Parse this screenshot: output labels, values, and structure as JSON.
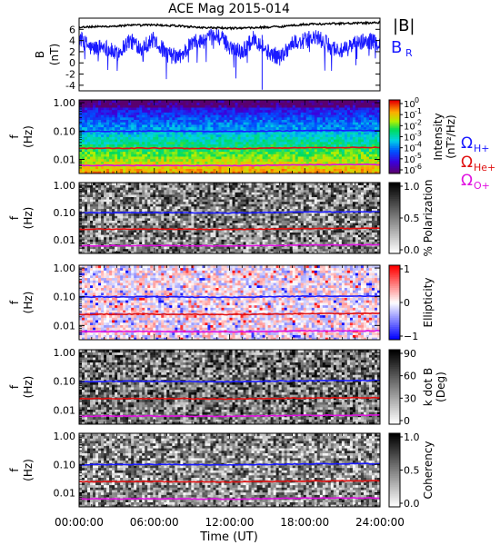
{
  "chart_data": [
    {
      "type": "line",
      "title": "ACE Mag 2015-014",
      "ylabel": "B",
      "yunit": "(nT)",
      "ylim": [
        -5,
        8
      ],
      "yticks": [
        -4,
        -2,
        0,
        2,
        4,
        6
      ],
      "xlim_hours": [
        0,
        24
      ],
      "legend": [
        {
          "label": "|B|",
          "color": "#000000"
        },
        {
          "label": "B",
          "sub": "R",
          "color": "#1a1aff"
        }
      ],
      "series": [
        {
          "name": "|B|",
          "color": "#000000",
          "x_hours": [
            0,
            2,
            4,
            6,
            8,
            10,
            12,
            14,
            16,
            18,
            20,
            22,
            24
          ],
          "values": [
            6.4,
            6.5,
            6.7,
            6.8,
            6.6,
            6.3,
            6.2,
            6.3,
            6.5,
            6.9,
            7.0,
            7.1,
            7.2
          ]
        },
        {
          "name": "B",
          "sub": "R",
          "color": "#1a1aff",
          "x_hours": [
            0,
            1,
            2,
            3,
            4,
            5,
            6,
            7,
            8,
            9,
            10,
            11,
            12,
            13,
            14,
            15,
            16,
            17,
            18,
            19,
            20,
            21,
            22,
            23,
            24
          ],
          "values": [
            4.5,
            2.5,
            3.0,
            1.5,
            4.0,
            2.8,
            4.2,
            1.5,
            1.0,
            3.5,
            4.0,
            5.0,
            3.0,
            2.0,
            4.5,
            2.0,
            1.0,
            3.5,
            4.0,
            4.5,
            3.0,
            2.0,
            3.5,
            4.0,
            3.5
          ],
          "min": -4.5
        }
      ]
    },
    {
      "type": "heatmap",
      "ylabel": "f",
      "yunit": "(Hz)",
      "yticks": [
        "0.01",
        "0.10",
        "1.00"
      ],
      "colorbar": {
        "title": "Intensity",
        "unit": "(nT²/Hz)",
        "scale": "log",
        "ticks": [
          {
            "base": "10",
            "exp": "0"
          },
          {
            "base": "10",
            "exp": "-1"
          },
          {
            "base": "10",
            "exp": "-2"
          },
          {
            "base": "10",
            "exp": "-3"
          },
          {
            "base": "10",
            "exp": "-4"
          },
          {
            "base": "10",
            "exp": "-5"
          },
          {
            "base": "10",
            "exp": "-6"
          }
        ],
        "palette": "rainbow"
      },
      "legend": [
        {
          "symbol": "Ω",
          "sub": "H+",
          "color": "#1a1aff"
        },
        {
          "symbol": "Ω",
          "sub": "He+",
          "color": "#e01010"
        },
        {
          "symbol": "Ω",
          "sub": "O+",
          "color": "#e010e0"
        }
      ]
    },
    {
      "type": "heatmap",
      "ylabel": "f",
      "yunit": "(Hz)",
      "yticks": [
        "0.01",
        "0.10",
        "1.00"
      ],
      "colorbar": {
        "title": "% Polarization",
        "ticks": [
          "0.0",
          "0.5",
          "1.0"
        ],
        "palette": "gray"
      }
    },
    {
      "type": "heatmap",
      "ylabel": "f",
      "yunit": "(Hz)",
      "yticks": [
        "0.01",
        "0.10",
        "1.00"
      ],
      "colorbar": {
        "title": "Ellipticity",
        "ticks": [
          "−1",
          "0",
          "1"
        ],
        "palette": "bwr"
      }
    },
    {
      "type": "heatmap",
      "ylabel": "f",
      "yunit": "(Hz)",
      "yticks": [
        "0.01",
        "0.10",
        "1.00"
      ],
      "colorbar": {
        "title": "k dot B",
        "unit": "(Deg)",
        "ticks": [
          "0",
          "30",
          "60",
          "90"
        ],
        "palette": "gray"
      }
    },
    {
      "type": "heatmap",
      "ylabel": "f",
      "yunit": "(Hz)",
      "yticks": [
        "0.01",
        "0.10",
        "1.00"
      ],
      "xticks": [
        "00:00:00",
        "06:00:00",
        "12:00:00",
        "18:00:00",
        "24:00:00"
      ],
      "xlabel": "Time (UT)",
      "colorbar": {
        "title": "Coherency",
        "ticks": [
          "0.0",
          "0.5",
          "1.0"
        ],
        "palette": "gray"
      }
    }
  ],
  "gyrofrequency_lines_hz": {
    "x_hours": [
      0,
      6,
      12,
      18,
      24
    ],
    "H+": [
      0.098,
      0.1,
      0.096,
      0.104,
      0.106
    ],
    "He+": [
      0.0245,
      0.025,
      0.024,
      0.026,
      0.0265
    ],
    "O+": [
      0.0061,
      0.0062,
      0.006,
      0.0065,
      0.0066
    ]
  }
}
